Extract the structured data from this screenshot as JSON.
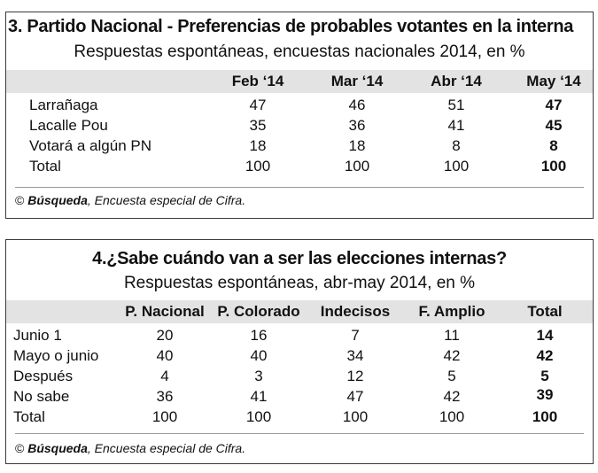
{
  "table1": {
    "title": "3. Partido Nacional - Preferencias de probables votantes en la interna",
    "subtitle": "Respuestas espontáneas, encuestas nacionales 2014, en %",
    "columns": [
      "Feb ‘14",
      "Mar ‘14",
      "Abr ‘14",
      "May ‘14"
    ],
    "rows": [
      {
        "label": "Larrañaga",
        "values": [
          "47",
          "46",
          "51",
          "47"
        ]
      },
      {
        "label": "Lacalle Pou",
        "values": [
          "35",
          "36",
          "41",
          "45"
        ]
      },
      {
        "label": "Votará a algún PN",
        "values": [
          "18",
          "18",
          "8",
          "8"
        ]
      },
      {
        "label": "Total",
        "values": [
          "100",
          "100",
          "100",
          "100"
        ]
      }
    ],
    "source": {
      "symbol": "©",
      "brand": "Búsqueda",
      "rest": ", Encuesta especial de Cifra."
    }
  },
  "table2": {
    "title": "4.¿Sabe cuándo van a ser las elecciones internas?",
    "subtitle": "Respuestas espontáneas, abr-may 2014, en %",
    "columns": [
      "P. Nacional",
      "P. Colorado",
      "Indecisos",
      "F. Amplio",
      "Total"
    ],
    "rows": [
      {
        "label": "Junio 1",
        "values": [
          "20",
          "16",
          "7",
          "11",
          "14"
        ]
      },
      {
        "label": "Mayo o junio",
        "values": [
          "40",
          "40",
          "34",
          "42",
          "42"
        ]
      },
      {
        "label": "Después",
        "values": [
          "4",
          "3",
          "12",
          "5",
          "5"
        ]
      },
      {
        "label": "No sabe",
        "values": [
          "36",
          "41",
          "47",
          "42",
          "39"
        ]
      },
      {
        "label": "Total",
        "values": [
          "100",
          "100",
          "100",
          "100",
          "100"
        ]
      }
    ],
    "source": {
      "symbol": "©",
      "brand": "Búsqueda",
      "rest": ", Encuesta especial de Cifra."
    }
  }
}
